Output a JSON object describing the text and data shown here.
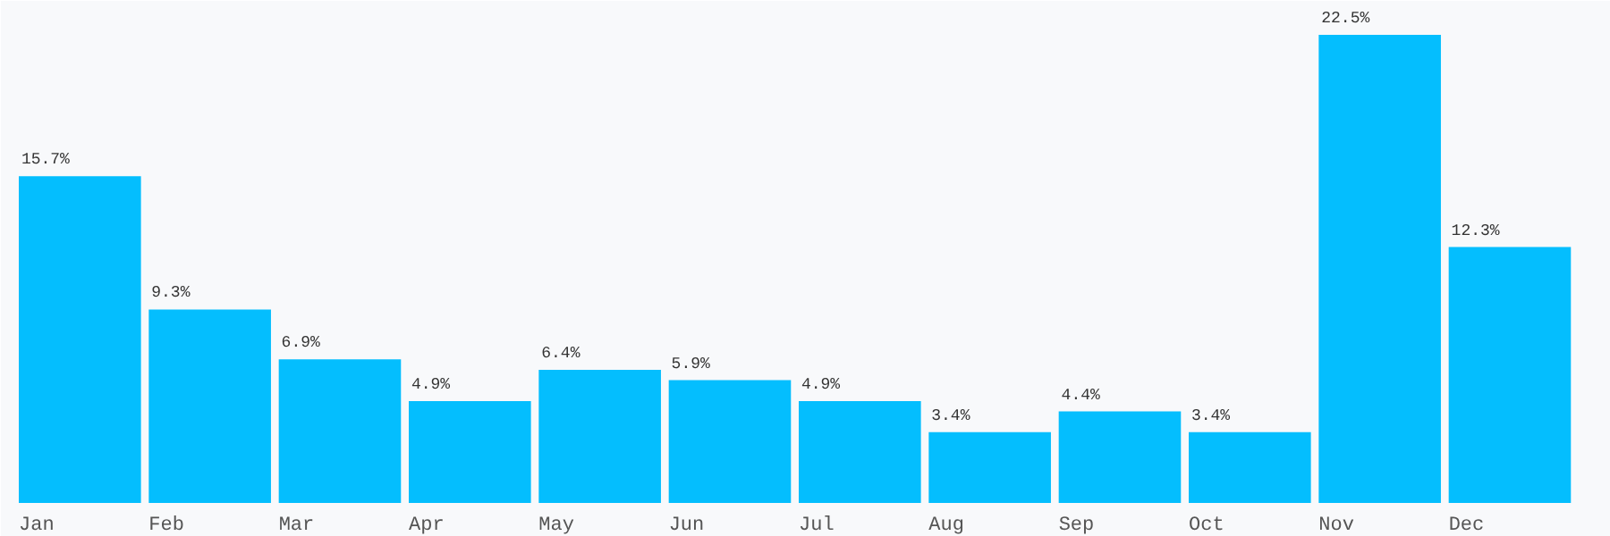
{
  "chart_data": {
    "type": "bar",
    "categories": [
      "Jan",
      "Feb",
      "Mar",
      "Apr",
      "May",
      "Jun",
      "Jul",
      "Aug",
      "Sep",
      "Oct",
      "Nov",
      "Dec"
    ],
    "values": [
      15.7,
      9.3,
      6.9,
      4.9,
      6.4,
      5.9,
      4.9,
      3.4,
      4.4,
      3.4,
      22.5,
      12.3
    ],
    "value_labels": [
      "15.7%",
      "9.3%",
      "6.9%",
      "4.9%",
      "6.4%",
      "5.9%",
      "4.9%",
      "3.4%",
      "4.4%",
      "3.4%",
      "22.5%",
      "12.3%"
    ],
    "color": "#04befe",
    "grid": false
  }
}
